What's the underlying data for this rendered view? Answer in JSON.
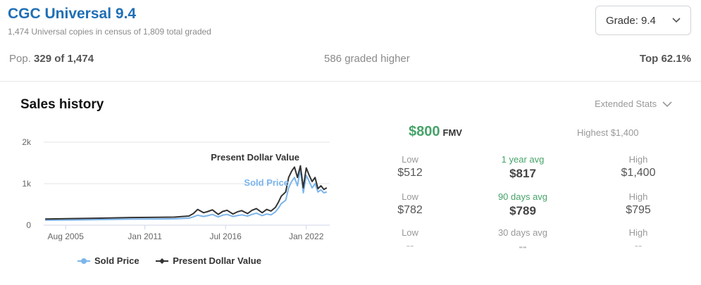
{
  "header": {
    "title": "CGC Universal 9.4",
    "subtitle": "1,474 Universal copies in census of 1,809 total graded",
    "grade_select": "Grade: 9.4"
  },
  "stats_bar": {
    "pop_prefix": "Pop.",
    "pop_value": "329 of 1,474",
    "graded_higher": "586 graded higher",
    "top": "Top 62.1%"
  },
  "sales": {
    "title": "Sales history",
    "extended_stats": "Extended Stats"
  },
  "fmv": {
    "value": "$800",
    "label": "FMV",
    "highest": "Highest $1,400"
  },
  "stats_grid": [
    {
      "low_label": "Low",
      "low": "$512",
      "avg_label": "1 year avg",
      "avg": "$817",
      "high_label": "High",
      "high": "$1,400"
    },
    {
      "low_label": "Low",
      "low": "$782",
      "avg_label": "90 days avg",
      "avg": "$789",
      "high_label": "High",
      "high": "$795"
    },
    {
      "low_label": "Low",
      "low": "--",
      "avg_label": "30 days avg",
      "avg": "--",
      "high_label": "High",
      "high": "--"
    }
  ],
  "chart_data": {
    "type": "line",
    "x_tick_labels": [
      "Aug 2005",
      "Jan 2011",
      "Jul 2016",
      "Jan 2022"
    ],
    "y_tick_labels": [
      "0",
      "1k",
      "2k"
    ],
    "ylim": [
      0,
      2000
    ],
    "xlim": [
      2004.1,
      2023.6
    ],
    "grid": true,
    "legend_position": "bottom",
    "annotations": [
      "Present Dollar Value",
      "Sold Price"
    ],
    "series": [
      {
        "name": "Sold Price",
        "color": "#7cb5ec",
        "x": [
          2004.2,
          2006,
          2008,
          2010,
          2012,
          2013,
          2014,
          2014.3,
          2014.6,
          2015,
          2015.3,
          2015.6,
          2016,
          2016.3,
          2016.6,
          2017,
          2017.3,
          2017.6,
          2018,
          2018.3,
          2018.6,
          2019,
          2019.3,
          2019.6,
          2019.9,
          2020.1,
          2020.3,
          2020.6,
          2020.8,
          2021,
          2021.2,
          2021.4,
          2021.6,
          2021.8,
          2022,
          2022.2,
          2022.4,
          2022.6,
          2022.8,
          2023,
          2023.2,
          2023.4
        ],
        "y": [
          120,
          125,
          135,
          145,
          150,
          155,
          170,
          200,
          240,
          210,
          230,
          260,
          200,
          240,
          260,
          210,
          230,
          250,
          220,
          260,
          290,
          230,
          270,
          250,
          320,
          410,
          520,
          600,
          900,
          1050,
          1150,
          950,
          1350,
          780,
          1200,
          1050,
          900,
          1000,
          800,
          850,
          780,
          800
        ]
      },
      {
        "name": "Present Dollar Value",
        "color": "#333333",
        "x": [
          2004.2,
          2006,
          2008,
          2010,
          2012,
          2013,
          2014,
          2014.3,
          2014.6,
          2015,
          2015.3,
          2015.6,
          2016,
          2016.3,
          2016.6,
          2017,
          2017.3,
          2017.6,
          2018,
          2018.3,
          2018.6,
          2019,
          2019.3,
          2019.6,
          2019.9,
          2020.1,
          2020.3,
          2020.6,
          2020.8,
          2021,
          2021.2,
          2021.4,
          2021.6,
          2021.8,
          2022,
          2022.2,
          2022.4,
          2022.6,
          2022.8,
          2023,
          2023.2,
          2023.4
        ],
        "y": [
          150,
          160,
          170,
          185,
          190,
          195,
          220,
          280,
          380,
          300,
          330,
          370,
          260,
          330,
          360,
          270,
          320,
          350,
          280,
          360,
          400,
          300,
          380,
          340,
          430,
          550,
          700,
          800,
          1150,
          1300,
          1400,
          1150,
          1430,
          900,
          1380,
          1200,
          1050,
          1150,
          880,
          950,
          860,
          900
        ]
      }
    ]
  }
}
